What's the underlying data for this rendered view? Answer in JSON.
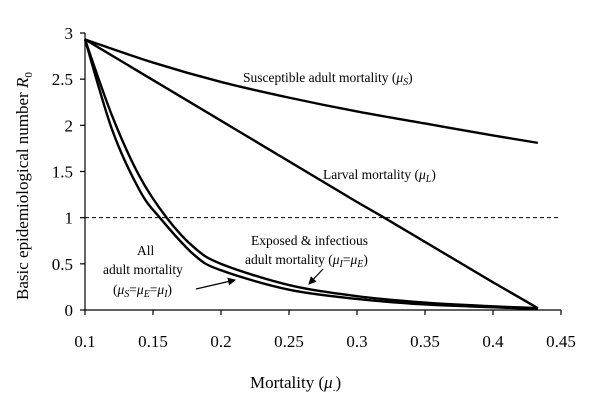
{
  "chart_data": {
    "type": "line",
    "xlabel": "Mortality (μ.)",
    "ylabel": "Basic epidemiological number R0",
    "xlim": [
      0.1,
      0.45
    ],
    "ylim": [
      0,
      3
    ],
    "xticks": [
      "0.1",
      "0.15",
      "0.2",
      "0.25",
      "0.3",
      "0.35",
      "0.4",
      "0.45"
    ],
    "yticks": [
      "0",
      "0.5",
      "1",
      "1.5",
      "2",
      "2.5",
      "3"
    ],
    "reference_line": {
      "y": 1,
      "style": "dashed"
    },
    "series": [
      {
        "label": "Susceptible adult mortality (μS)",
        "x": [
          0.1,
          0.15,
          0.2,
          0.25,
          0.3,
          0.35,
          0.4,
          0.433
        ],
        "y": [
          2.93,
          2.68,
          2.47,
          2.3,
          2.15,
          2.02,
          1.89,
          1.81
        ]
      },
      {
        "label": "Larval mortality (μL)",
        "x": [
          0.1,
          0.2,
          0.3,
          0.32,
          0.4,
          0.433
        ],
        "y": [
          2.93,
          2.05,
          1.17,
          1.0,
          0.3,
          0.02
        ]
      },
      {
        "label": "Exposed & infectious adult mortality (μI=μE)",
        "x": [
          0.1,
          0.12,
          0.14,
          0.16,
          0.18,
          0.2,
          0.25,
          0.3,
          0.35,
          0.4,
          0.433
        ],
        "y": [
          2.93,
          2.1,
          1.45,
          1.0,
          0.68,
          0.5,
          0.27,
          0.15,
          0.08,
          0.04,
          0.02
        ]
      },
      {
        "label": "All adult mortality (μS=μE=μI)",
        "x": [
          0.1,
          0.12,
          0.14,
          0.155,
          0.18,
          0.2,
          0.25,
          0.3,
          0.35,
          0.4,
          0.433
        ],
        "y": [
          2.93,
          1.95,
          1.3,
          1.0,
          0.6,
          0.43,
          0.22,
          0.12,
          0.06,
          0.03,
          0.01
        ]
      }
    ]
  },
  "annotations": {
    "susceptible": {
      "text": "Susceptible adult mortality (",
      "mu": "μ",
      "sub": "S",
      "close": ")"
    },
    "larval": {
      "text": "Larval mortality (",
      "mu": "μ",
      "sub": "L",
      "close": ")"
    },
    "exposed_line1": "Exposed & infectious",
    "exposed_line2": {
      "text": "adult mortality (",
      "mu1": "μ",
      "sub1": "I",
      "eq": "=",
      "mu2": "μ",
      "sub2": "E",
      "close": ")"
    },
    "all_line1": "All",
    "all_line2": "adult mortality",
    "all_line3": {
      "open": "(",
      "mu1": "μ",
      "sub1": "S",
      "eq1": "=",
      "mu2": "μ",
      "sub2": "E",
      "eq2": "=",
      "mu3": "μ",
      "sub3": "I",
      "close": ")"
    }
  },
  "axis_titles": {
    "x_text": "Mortality (",
    "x_mu": "μ",
    "x_sub": ".",
    "x_close": ")",
    "y_text": "Basic epidemiological number ",
    "y_R": "R",
    "y_sub": "0"
  }
}
